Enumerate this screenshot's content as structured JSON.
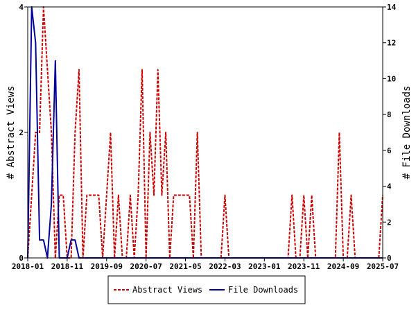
{
  "chart_data": {
    "type": "line",
    "title": "",
    "xlabel": "",
    "ylabel_left": "# Abstract Views",
    "ylabel_right": "# File Downloads",
    "x_ticks": [
      "2018-01",
      "2018-11",
      "2019-09",
      "2020-07",
      "2021-05",
      "2022-03",
      "2023-01",
      "2023-11",
      "2024-09",
      "2025-07"
    ],
    "xlim": [
      "2018-01",
      "2025-07"
    ],
    "ylim_left": [
      0,
      4
    ],
    "yticks_left": [
      0,
      2,
      4
    ],
    "ylim_right": [
      0,
      14
    ],
    "yticks_right": [
      0,
      2,
      4,
      6,
      8,
      10,
      12,
      14
    ],
    "grid": false,
    "legend_position": "bottom",
    "colors": {
      "abstract_views": "#cc0000",
      "file_downloads": "#000099"
    },
    "series": [
      {
        "name": "Abstract Views",
        "axis": "left",
        "style": "dashed",
        "points": [
          [
            "2018-01-01",
            0
          ],
          [
            "2018-02-01",
            1
          ],
          [
            "2018-03-01",
            2
          ],
          [
            "2018-04-01",
            2
          ],
          [
            "2018-05-01",
            4
          ],
          [
            "2018-06-01",
            3
          ],
          [
            "2018-07-01",
            2
          ],
          [
            "2018-08-01",
            0
          ],
          [
            "2018-09-01",
            1
          ],
          [
            "2018-10-01",
            1
          ],
          [
            "2018-11-01",
            0
          ],
          [
            "2018-12-01",
            0
          ],
          [
            "2019-01-01",
            2
          ],
          [
            "2019-02-01",
            3
          ],
          [
            "2019-03-01",
            0
          ],
          [
            "2019-04-01",
            1
          ],
          [
            "2019-05-01",
            1
          ],
          [
            "2019-06-01",
            1
          ],
          [
            "2019-07-01",
            1
          ],
          [
            "2019-08-01",
            0
          ],
          [
            "2019-09-01",
            1
          ],
          [
            "2019-10-01",
            2
          ],
          [
            "2019-11-01",
            0
          ],
          [
            "2019-12-01",
            1
          ],
          [
            "2020-01-01",
            0
          ],
          [
            "2020-02-01",
            0
          ],
          [
            "2020-03-01",
            1
          ],
          [
            "2020-04-01",
            0
          ],
          [
            "2020-05-01",
            1
          ],
          [
            "2020-06-01",
            3
          ],
          [
            "2020-07-01",
            0
          ],
          [
            "2020-08-01",
            2
          ],
          [
            "2020-09-01",
            1
          ],
          [
            "2020-10-01",
            3
          ],
          [
            "2020-11-01",
            1
          ],
          [
            "2020-12-01",
            2
          ],
          [
            "2021-01-01",
            0
          ],
          [
            "2021-02-01",
            1
          ],
          [
            "2021-03-01",
            1
          ],
          [
            "2021-04-01",
            1
          ],
          [
            "2021-05-01",
            1
          ],
          [
            "2021-06-01",
            1
          ],
          [
            "2021-07-01",
            0
          ],
          [
            "2021-08-01",
            2
          ],
          [
            "2021-09-01",
            0
          ],
          [
            "2021-10-01",
            0
          ],
          [
            "2021-11-01",
            0
          ],
          [
            "2021-12-01",
            0
          ],
          [
            "2022-01-01",
            0
          ],
          [
            "2022-02-01",
            0
          ],
          [
            "2022-03-01",
            1
          ],
          [
            "2022-04-01",
            0
          ],
          [
            "2022-05-01",
            0
          ],
          [
            "2022-06-01",
            0
          ],
          [
            "2022-07-01",
            0
          ],
          [
            "2022-08-01",
            0
          ],
          [
            "2022-09-01",
            0
          ],
          [
            "2022-10-01",
            0
          ],
          [
            "2022-11-01",
            0
          ],
          [
            "2022-12-01",
            0
          ],
          [
            "2023-01-01",
            0
          ],
          [
            "2023-02-01",
            0
          ],
          [
            "2023-03-01",
            0
          ],
          [
            "2023-04-01",
            0
          ],
          [
            "2023-05-01",
            0
          ],
          [
            "2023-06-01",
            0
          ],
          [
            "2023-07-01",
            0
          ],
          [
            "2023-08-01",
            1
          ],
          [
            "2023-09-01",
            0
          ],
          [
            "2023-10-01",
            0
          ],
          [
            "2023-11-01",
            1
          ],
          [
            "2023-12-01",
            0
          ],
          [
            "2024-01-01",
            1
          ],
          [
            "2024-02-01",
            0
          ],
          [
            "2024-03-01",
            0
          ],
          [
            "2024-04-01",
            0
          ],
          [
            "2024-05-01",
            0
          ],
          [
            "2024-06-01",
            0
          ],
          [
            "2024-07-01",
            0
          ],
          [
            "2024-08-01",
            2
          ],
          [
            "2024-09-01",
            0
          ],
          [
            "2024-10-01",
            0
          ],
          [
            "2024-11-01",
            1
          ],
          [
            "2024-12-01",
            0
          ],
          [
            "2025-01-01",
            0
          ],
          [
            "2025-02-01",
            0
          ],
          [
            "2025-03-01",
            0
          ],
          [
            "2025-04-01",
            0
          ],
          [
            "2025-05-01",
            0
          ],
          [
            "2025-06-01",
            0
          ],
          [
            "2025-07-01",
            1
          ]
        ]
      },
      {
        "name": "File Downloads",
        "axis": "right",
        "style": "solid",
        "points": [
          [
            "2018-01-01",
            0
          ],
          [
            "2018-02-01",
            14
          ],
          [
            "2018-03-01",
            12
          ],
          [
            "2018-04-01",
            1
          ],
          [
            "2018-05-01",
            1
          ],
          [
            "2018-06-01",
            0
          ],
          [
            "2018-07-01",
            3
          ],
          [
            "2018-08-01",
            11
          ],
          [
            "2018-09-01",
            0
          ],
          [
            "2018-10-01",
            0
          ],
          [
            "2018-11-01",
            0
          ],
          [
            "2018-12-01",
            1
          ],
          [
            "2019-01-01",
            1
          ],
          [
            "2019-02-01",
            0
          ],
          [
            "2019-03-01",
            0
          ],
          [
            "2019-04-01",
            0
          ],
          [
            "2019-05-01",
            0
          ],
          [
            "2019-06-01",
            0
          ],
          [
            "2019-07-01",
            0
          ],
          [
            "2019-08-01",
            0
          ],
          [
            "2019-09-01",
            0
          ],
          [
            "2019-10-01",
            0
          ],
          [
            "2019-11-01",
            0
          ],
          [
            "2019-12-01",
            0
          ],
          [
            "2020-01-01",
            0
          ],
          [
            "2020-02-01",
            0
          ],
          [
            "2020-03-01",
            0
          ],
          [
            "2020-04-01",
            0
          ],
          [
            "2020-05-01",
            0
          ],
          [
            "2020-06-01",
            0
          ],
          [
            "2020-07-01",
            0
          ],
          [
            "2020-08-01",
            0
          ],
          [
            "2020-09-01",
            0
          ],
          [
            "2020-10-01",
            0
          ],
          [
            "2020-11-01",
            0
          ],
          [
            "2020-12-01",
            0
          ],
          [
            "2021-01-01",
            0
          ],
          [
            "2021-02-01",
            0
          ],
          [
            "2021-03-01",
            0
          ],
          [
            "2021-04-01",
            0
          ],
          [
            "2021-05-01",
            0
          ],
          [
            "2021-06-01",
            0
          ],
          [
            "2021-07-01",
            0
          ],
          [
            "2021-08-01",
            0
          ],
          [
            "2021-09-01",
            0
          ],
          [
            "2021-10-01",
            0
          ],
          [
            "2021-11-01",
            0
          ],
          [
            "2021-12-01",
            0
          ],
          [
            "2022-01-01",
            0
          ],
          [
            "2022-02-01",
            0
          ],
          [
            "2022-03-01",
            0
          ],
          [
            "2022-04-01",
            0
          ],
          [
            "2022-05-01",
            0
          ],
          [
            "2022-06-01",
            0
          ],
          [
            "2022-07-01",
            0
          ],
          [
            "2022-08-01",
            0
          ],
          [
            "2022-09-01",
            0
          ],
          [
            "2022-10-01",
            0
          ],
          [
            "2022-11-01",
            0
          ],
          [
            "2022-12-01",
            0
          ],
          [
            "2023-01-01",
            0
          ],
          [
            "2023-02-01",
            0
          ],
          [
            "2023-03-01",
            0
          ],
          [
            "2023-04-01",
            0
          ],
          [
            "2023-05-01",
            0
          ],
          [
            "2023-06-01",
            0
          ],
          [
            "2023-07-01",
            0
          ],
          [
            "2023-08-01",
            0
          ],
          [
            "2023-09-01",
            0
          ],
          [
            "2023-10-01",
            0
          ],
          [
            "2023-11-01",
            0
          ],
          [
            "2023-12-01",
            0
          ],
          [
            "2024-01-01",
            0
          ],
          [
            "2024-02-01",
            0
          ],
          [
            "2024-03-01",
            0
          ],
          [
            "2024-04-01",
            0
          ],
          [
            "2024-05-01",
            0
          ],
          [
            "2024-06-01",
            0
          ],
          [
            "2024-07-01",
            0
          ],
          [
            "2024-08-01",
            0
          ],
          [
            "2024-09-01",
            0
          ],
          [
            "2024-10-01",
            0
          ],
          [
            "2024-11-01",
            0
          ],
          [
            "2024-12-01",
            0
          ],
          [
            "2025-01-01",
            0
          ],
          [
            "2025-02-01",
            0
          ],
          [
            "2025-03-01",
            0
          ],
          [
            "2025-04-01",
            0
          ],
          [
            "2025-05-01",
            0
          ],
          [
            "2025-06-01",
            0
          ],
          [
            "2025-07-01",
            0
          ]
        ]
      }
    ]
  }
}
